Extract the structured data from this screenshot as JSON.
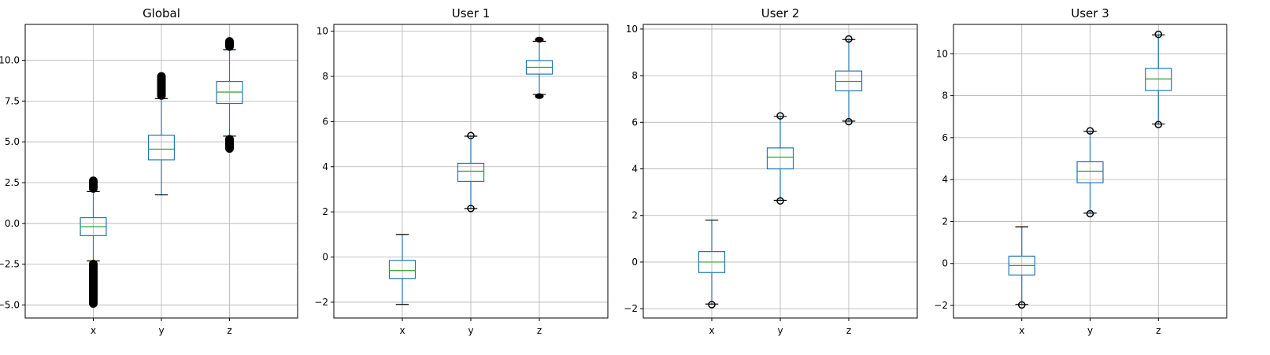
{
  "colors": {
    "box": "#1f77b4",
    "median": "#2ca02c",
    "grid": "#b0b0b0",
    "axis": "#000000",
    "outlier": "#000000"
  },
  "chart_data": [
    {
      "type": "box",
      "title": "Global",
      "categories": [
        "x",
        "y",
        "z"
      ],
      "ylim": [
        -5.8,
        12.2
      ],
      "yticks": [
        -5.0,
        -2.5,
        0.0,
        2.5,
        5.0,
        7.5,
        10.0
      ],
      "ytick_labels": [
        "−5.0",
        "−2.5",
        "0.0",
        "2.5",
        "5.0",
        "7.5",
        "10.0"
      ],
      "grid": true,
      "boxes": [
        {
          "category": "x",
          "q1": -0.75,
          "median": -0.2,
          "q3": 0.35,
          "whisker_low": -2.3,
          "whisker_high": 1.95,
          "outlier_ranges": [
            [
              -5.1,
              -2.3
            ],
            [
              1.95,
              2.8
            ]
          ]
        },
        {
          "category": "y",
          "q1": 3.9,
          "median": 4.55,
          "q3": 5.4,
          "whisker_low": 1.75,
          "whisker_high": 7.65,
          "outlier_ranges": [
            [
              7.65,
              9.2
            ]
          ]
        },
        {
          "category": "z",
          "q1": 7.35,
          "median": 8.05,
          "q3": 8.7,
          "whisker_low": 5.35,
          "whisker_high": 10.65,
          "outlier_ranges": [
            [
              4.4,
              5.35
            ],
            [
              10.65,
              11.35
            ]
          ]
        }
      ]
    },
    {
      "type": "box",
      "title": "User 1",
      "categories": [
        "x",
        "y",
        "z"
      ],
      "ylim": [
        -2.7,
        10.3
      ],
      "yticks": [
        -2,
        0,
        2,
        4,
        6,
        8,
        10
      ],
      "ytick_labels": [
        "−2",
        "0",
        "2",
        "4",
        "6",
        "8",
        "10"
      ],
      "grid": true,
      "boxes": [
        {
          "category": "x",
          "q1": -0.95,
          "median": -0.6,
          "q3": -0.15,
          "whisker_low": -2.1,
          "whisker_high": 1.0,
          "outlier_ranges": []
        },
        {
          "category": "y",
          "q1": 3.35,
          "median": 3.8,
          "q3": 4.15,
          "whisker_low": 2.15,
          "whisker_high": 5.35,
          "outlier_ranges": [
            [
              2.15,
              2.15
            ],
            [
              5.35,
              5.4
            ]
          ]
        },
        {
          "category": "z",
          "q1": 8.1,
          "median": 8.4,
          "q3": 8.7,
          "whisker_low": 7.2,
          "whisker_high": 9.55,
          "outlier_ranges": [
            [
              7.05,
              7.2
            ],
            [
              9.55,
              9.7
            ]
          ]
        }
      ]
    },
    {
      "type": "box",
      "title": "User 2",
      "categories": [
        "x",
        "y",
        "z"
      ],
      "ylim": [
        -2.4,
        10.2
      ],
      "yticks": [
        -2,
        0,
        2,
        4,
        6,
        8,
        10
      ],
      "ytick_labels": [
        "−2",
        "0",
        "2",
        "4",
        "6",
        "8",
        "10"
      ],
      "grid": true,
      "boxes": [
        {
          "category": "x",
          "q1": -0.45,
          "median": 0.0,
          "q3": 0.45,
          "whisker_low": -1.8,
          "whisker_high": 1.8,
          "outlier_ranges": [
            [
              -1.85,
              -1.8
            ]
          ]
        },
        {
          "category": "y",
          "q1": 4.0,
          "median": 4.5,
          "q3": 4.9,
          "whisker_low": 2.65,
          "whisker_high": 6.25,
          "outlier_ranges": [
            [
              2.6,
              2.65
            ],
            [
              6.25,
              6.3
            ]
          ]
        },
        {
          "category": "z",
          "q1": 7.35,
          "median": 7.75,
          "q3": 8.2,
          "whisker_low": 6.05,
          "whisker_high": 9.55,
          "outlier_ranges": [
            [
              6.0,
              6.05
            ],
            [
              9.55,
              9.6
            ]
          ]
        }
      ]
    },
    {
      "type": "box",
      "title": "User 3",
      "categories": [
        "x",
        "y",
        "z"
      ],
      "ylim": [
        -2.6,
        11.4
      ],
      "yticks": [
        -2,
        0,
        2,
        4,
        6,
        8,
        10
      ],
      "ytick_labels": [
        "−2",
        "0",
        "2",
        "4",
        "6",
        "8",
        "10"
      ],
      "grid": true,
      "boxes": [
        {
          "category": "x",
          "q1": -0.55,
          "median": -0.1,
          "q3": 0.35,
          "whisker_low": -1.95,
          "whisker_high": 1.75,
          "outlier_ranges": [
            [
              -2.0,
              -1.95
            ]
          ]
        },
        {
          "category": "y",
          "q1": 3.85,
          "median": 4.4,
          "q3": 4.85,
          "whisker_low": 2.4,
          "whisker_high": 6.3,
          "outlier_ranges": [
            [
              2.35,
              2.4
            ],
            [
              6.3,
              6.35
            ]
          ]
        },
        {
          "category": "z",
          "q1": 8.25,
          "median": 8.8,
          "q3": 9.3,
          "whisker_low": 6.65,
          "whisker_high": 10.9,
          "outlier_ranges": [
            [
              6.6,
              6.65
            ],
            [
              10.9,
              10.95
            ]
          ]
        }
      ]
    }
  ]
}
